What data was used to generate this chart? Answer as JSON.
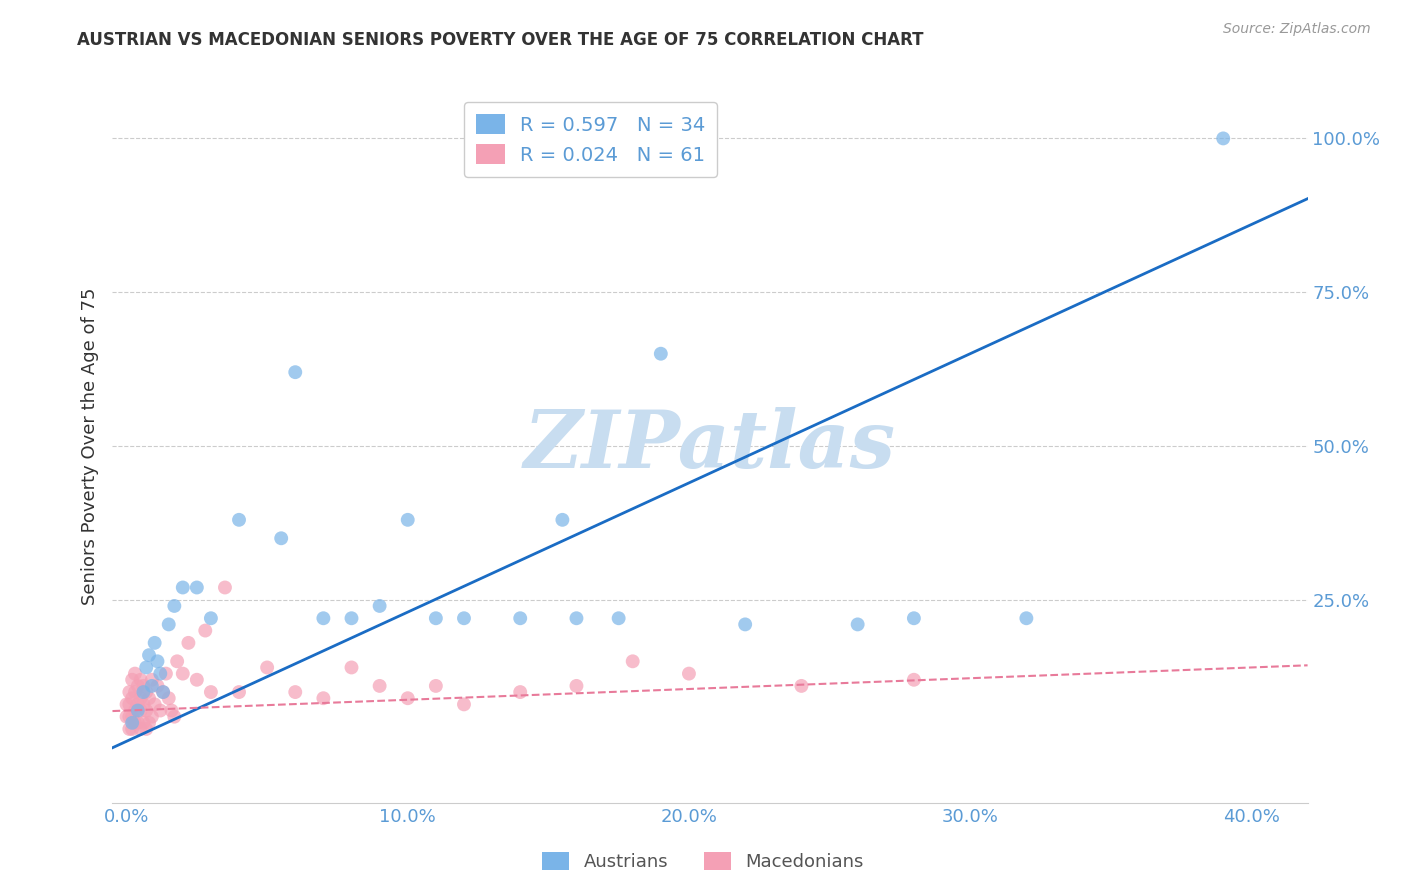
{
  "title": "AUSTRIAN VS MACEDONIAN SENIORS POVERTY OVER THE AGE OF 75 CORRELATION CHART",
  "source": "Source: ZipAtlas.com",
  "xlabel_ticks": [
    "0.0%",
    "10.0%",
    "20.0%",
    "30.0%",
    "40.0%"
  ],
  "xlabel_tick_vals": [
    0.0,
    0.1,
    0.2,
    0.3,
    0.4
  ],
  "ylabel": "Seniors Poverty Over the Age of 75",
  "ylabel_ticks": [
    "25.0%",
    "50.0%",
    "75.0%",
    "100.0%"
  ],
  "ylabel_tick_vals": [
    0.25,
    0.5,
    0.75,
    1.0
  ],
  "xlim": [
    -0.005,
    0.42
  ],
  "ylim": [
    -0.08,
    1.08
  ],
  "legend_austrians": "R = 0.597   N = 34",
  "legend_macedonians": "R = 0.024   N = 61",
  "color_austrians": "#7ab4e8",
  "color_macedonians": "#f4a0b5",
  "color_line_austrians": "#1a6cc4",
  "color_line_macedonians": "#e87a9a",
  "background_color": "#ffffff",
  "grid_color": "#cccccc",
  "axis_color": "#5b9bd5",
  "watermark_text": "ZIPatlas",
  "watermark_color": "#c8ddf0",
  "austrians_x": [
    0.002,
    0.004,
    0.006,
    0.007,
    0.008,
    0.009,
    0.01,
    0.011,
    0.012,
    0.013,
    0.015,
    0.017,
    0.02,
    0.025,
    0.03,
    0.04,
    0.055,
    0.06,
    0.07,
    0.08,
    0.09,
    0.1,
    0.11,
    0.12,
    0.14,
    0.155,
    0.16,
    0.175,
    0.19,
    0.22,
    0.26,
    0.28,
    0.32,
    0.39
  ],
  "austrians_y": [
    0.05,
    0.07,
    0.1,
    0.14,
    0.16,
    0.11,
    0.18,
    0.15,
    0.13,
    0.1,
    0.21,
    0.24,
    0.27,
    0.27,
    0.22,
    0.38,
    0.35,
    0.62,
    0.22,
    0.22,
    0.24,
    0.38,
    0.22,
    0.22,
    0.22,
    0.38,
    0.22,
    0.22,
    0.65,
    0.21,
    0.21,
    0.22,
    0.22,
    1.0
  ],
  "macedonians_x": [
    0.0,
    0.0,
    0.001,
    0.001,
    0.001,
    0.001,
    0.002,
    0.002,
    0.002,
    0.002,
    0.003,
    0.003,
    0.003,
    0.003,
    0.004,
    0.004,
    0.004,
    0.005,
    0.005,
    0.005,
    0.005,
    0.006,
    0.006,
    0.006,
    0.007,
    0.007,
    0.007,
    0.008,
    0.008,
    0.009,
    0.009,
    0.01,
    0.011,
    0.012,
    0.013,
    0.014,
    0.015,
    0.016,
    0.017,
    0.018,
    0.02,
    0.022,
    0.025,
    0.028,
    0.03,
    0.035,
    0.04,
    0.05,
    0.06,
    0.07,
    0.08,
    0.09,
    0.1,
    0.11,
    0.12,
    0.14,
    0.16,
    0.18,
    0.2,
    0.24,
    0.28
  ],
  "macedonians_y": [
    0.06,
    0.08,
    0.04,
    0.06,
    0.08,
    0.1,
    0.04,
    0.06,
    0.09,
    0.12,
    0.05,
    0.07,
    0.1,
    0.13,
    0.05,
    0.08,
    0.11,
    0.04,
    0.07,
    0.09,
    0.12,
    0.05,
    0.08,
    0.11,
    0.04,
    0.07,
    0.1,
    0.05,
    0.09,
    0.06,
    0.12,
    0.08,
    0.11,
    0.07,
    0.1,
    0.13,
    0.09,
    0.07,
    0.06,
    0.15,
    0.13,
    0.18,
    0.12,
    0.2,
    0.1,
    0.27,
    0.1,
    0.14,
    0.1,
    0.09,
    0.14,
    0.11,
    0.09,
    0.11,
    0.08,
    0.1,
    0.11,
    0.15,
    0.13,
    0.11,
    0.12
  ]
}
